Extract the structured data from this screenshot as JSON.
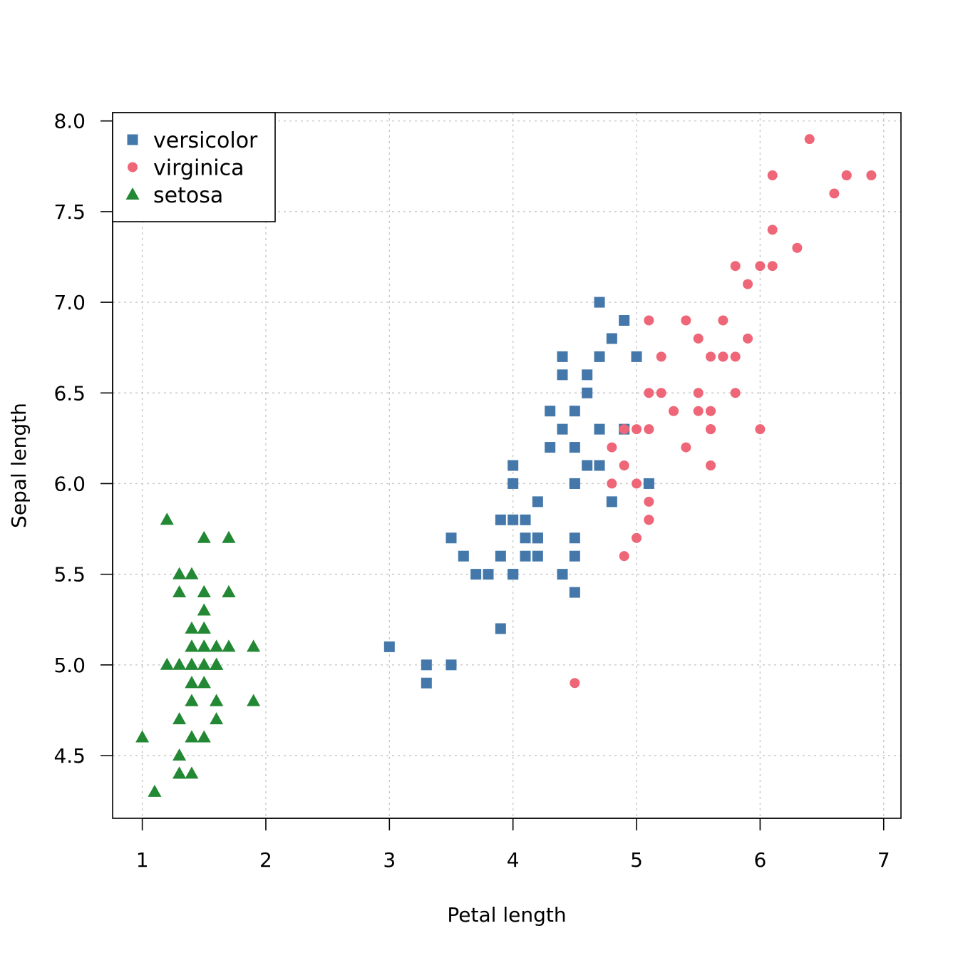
{
  "chart_data": {
    "type": "scatter",
    "title": "",
    "xlabel": "Petal length",
    "ylabel": "Sepal length",
    "xlim": [
      0.76,
      7.14
    ],
    "ylim": [
      4.154,
      8.046
    ],
    "x_ticks": [
      1,
      2,
      3,
      4,
      5,
      6,
      7
    ],
    "x_tick_labels": [
      "1",
      "2",
      "3",
      "4",
      "5",
      "6",
      "7"
    ],
    "y_ticks": [
      4.5,
      5.0,
      5.5,
      6.0,
      6.5,
      7.0,
      7.5,
      8.0
    ],
    "y_tick_labels": [
      "4.5",
      "5.0",
      "5.5",
      "6.0",
      "6.5",
      "7.0",
      "7.5",
      "8.0"
    ],
    "grid": true,
    "legend_position": "top-left",
    "series": [
      {
        "name": "versicolor",
        "marker": "square",
        "color": "#4477AA",
        "points": [
          [
            4.7,
            7.0
          ],
          [
            4.5,
            6.4
          ],
          [
            4.9,
            6.9
          ],
          [
            4.0,
            5.5
          ],
          [
            4.6,
            6.5
          ],
          [
            4.5,
            5.7
          ],
          [
            4.7,
            6.3
          ],
          [
            3.3,
            4.9
          ],
          [
            4.6,
            6.6
          ],
          [
            3.9,
            5.2
          ],
          [
            3.5,
            5.0
          ],
          [
            4.2,
            5.9
          ],
          [
            4.0,
            6.0
          ],
          [
            4.7,
            6.1
          ],
          [
            3.6,
            5.6
          ],
          [
            4.4,
            6.7
          ],
          [
            4.5,
            5.6
          ],
          [
            4.1,
            5.8
          ],
          [
            4.5,
            6.2
          ],
          [
            3.9,
            5.6
          ],
          [
            4.8,
            5.9
          ],
          [
            4.0,
            6.1
          ],
          [
            4.9,
            6.3
          ],
          [
            4.7,
            6.1
          ],
          [
            4.3,
            6.4
          ],
          [
            4.4,
            6.6
          ],
          [
            4.8,
            6.8
          ],
          [
            5.0,
            6.7
          ],
          [
            4.5,
            6.0
          ],
          [
            3.5,
            5.7
          ],
          [
            3.8,
            5.5
          ],
          [
            3.7,
            5.5
          ],
          [
            3.9,
            5.8
          ],
          [
            5.1,
            6.0
          ],
          [
            4.5,
            5.4
          ],
          [
            4.5,
            6.0
          ],
          [
            4.7,
            6.7
          ],
          [
            4.4,
            6.3
          ],
          [
            4.1,
            5.6
          ],
          [
            4.0,
            5.5
          ],
          [
            4.4,
            5.5
          ],
          [
            4.6,
            6.1
          ],
          [
            4.0,
            5.8
          ],
          [
            3.3,
            5.0
          ],
          [
            4.2,
            5.6
          ],
          [
            4.2,
            5.7
          ],
          [
            4.2,
            5.7
          ],
          [
            4.3,
            6.2
          ],
          [
            3.0,
            5.1
          ],
          [
            4.1,
            5.7
          ]
        ]
      },
      {
        "name": "virginica",
        "marker": "circle",
        "color": "#EE6677",
        "points": [
          [
            6.0,
            6.3
          ],
          [
            5.1,
            5.8
          ],
          [
            5.9,
            7.1
          ],
          [
            5.6,
            6.3
          ],
          [
            5.8,
            6.5
          ],
          [
            6.6,
            7.6
          ],
          [
            4.5,
            4.9
          ],
          [
            6.3,
            7.3
          ],
          [
            5.8,
            6.7
          ],
          [
            6.1,
            7.2
          ],
          [
            5.1,
            6.5
          ],
          [
            5.3,
            6.4
          ],
          [
            5.5,
            6.8
          ],
          [
            5.0,
            5.7
          ],
          [
            5.1,
            5.8
          ],
          [
            5.3,
            6.4
          ],
          [
            5.5,
            6.5
          ],
          [
            6.7,
            7.7
          ],
          [
            6.9,
            7.7
          ],
          [
            5.0,
            6.0
          ],
          [
            5.7,
            6.9
          ],
          [
            4.9,
            5.6
          ],
          [
            6.7,
            7.7
          ],
          [
            4.9,
            6.3
          ],
          [
            5.7,
            6.7
          ],
          [
            6.0,
            7.2
          ],
          [
            4.8,
            6.2
          ],
          [
            4.9,
            6.1
          ],
          [
            5.6,
            6.4
          ],
          [
            5.8,
            7.2
          ],
          [
            6.1,
            7.4
          ],
          [
            6.4,
            7.9
          ],
          [
            5.6,
            6.4
          ],
          [
            5.1,
            6.3
          ],
          [
            5.6,
            6.1
          ],
          [
            6.1,
            7.7
          ],
          [
            5.6,
            6.3
          ],
          [
            5.5,
            6.4
          ],
          [
            4.8,
            6.0
          ],
          [
            5.4,
            6.9
          ],
          [
            5.6,
            6.7
          ],
          [
            5.1,
            6.9
          ],
          [
            5.1,
            5.8
          ],
          [
            5.9,
            6.8
          ],
          [
            5.7,
            6.7
          ],
          [
            5.2,
            6.7
          ],
          [
            5.0,
            6.3
          ],
          [
            5.2,
            6.5
          ],
          [
            5.4,
            6.2
          ],
          [
            5.1,
            5.9
          ]
        ]
      },
      {
        "name": "setosa",
        "marker": "triangle",
        "color": "#228833",
        "points": [
          [
            1.4,
            5.1
          ],
          [
            1.4,
            4.9
          ],
          [
            1.3,
            4.7
          ],
          [
            1.5,
            4.6
          ],
          [
            1.4,
            5.0
          ],
          [
            1.7,
            5.4
          ],
          [
            1.4,
            4.6
          ],
          [
            1.5,
            5.0
          ],
          [
            1.4,
            4.4
          ],
          [
            1.5,
            4.9
          ],
          [
            1.5,
            5.4
          ],
          [
            1.6,
            4.8
          ],
          [
            1.4,
            4.8
          ],
          [
            1.1,
            4.3
          ],
          [
            1.2,
            5.8
          ],
          [
            1.5,
            5.7
          ],
          [
            1.3,
            5.4
          ],
          [
            1.4,
            5.1
          ],
          [
            1.7,
            5.7
          ],
          [
            1.5,
            5.1
          ],
          [
            1.7,
            5.4
          ],
          [
            1.5,
            5.1
          ],
          [
            1.0,
            4.6
          ],
          [
            1.7,
            5.1
          ],
          [
            1.9,
            4.8
          ],
          [
            1.6,
            5.0
          ],
          [
            1.6,
            5.0
          ],
          [
            1.5,
            5.2
          ],
          [
            1.4,
            5.2
          ],
          [
            1.6,
            4.7
          ],
          [
            1.6,
            4.8
          ],
          [
            1.5,
            5.4
          ],
          [
            1.5,
            5.2
          ],
          [
            1.4,
            5.5
          ],
          [
            1.5,
            4.9
          ],
          [
            1.2,
            5.0
          ],
          [
            1.3,
            5.5
          ],
          [
            1.4,
            4.9
          ],
          [
            1.3,
            4.4
          ],
          [
            1.5,
            5.1
          ],
          [
            1.3,
            5.0
          ],
          [
            1.3,
            4.5
          ],
          [
            1.3,
            4.4
          ],
          [
            1.6,
            5.0
          ],
          [
            1.9,
            5.1
          ],
          [
            1.4,
            4.8
          ],
          [
            1.6,
            5.1
          ],
          [
            1.4,
            4.6
          ],
          [
            1.5,
            5.3
          ],
          [
            1.4,
            5.0
          ]
        ]
      }
    ]
  }
}
